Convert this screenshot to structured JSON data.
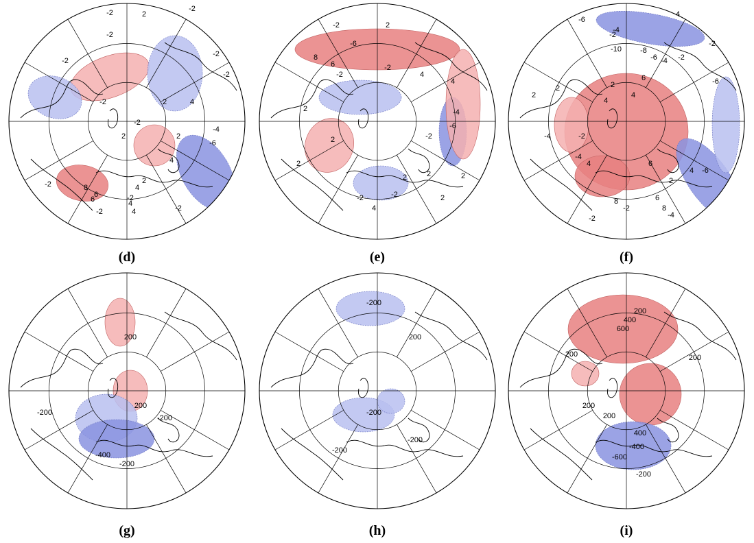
{
  "colors": {
    "positive_fill": "#f4b0b0",
    "positive_fill_strong": "#e88080",
    "negative_fill": "#b8bff0",
    "negative_fill_strong": "#8a93e0",
    "contour_bold": "#000000",
    "significance_contour": "#7ed321",
    "coastline": "#000000",
    "graticule": "#000000"
  },
  "panels": [
    {
      "label": "(d)",
      "contour_labels": [
        "2",
        "-2",
        "-2",
        "-2",
        "-2",
        "-2",
        "-2",
        "2",
        "2",
        "4",
        "4",
        "-2",
        "-4",
        "-6",
        "-2",
        "2",
        "4",
        "6",
        "8",
        "6",
        "4",
        "-2",
        "4",
        "-2",
        "-2",
        "-2",
        "2"
      ],
      "blobs": [
        {
          "sign": "pos",
          "strength": 1
        },
        {
          "sign": "pos",
          "strength": 2
        },
        {
          "sign": "neg",
          "strength": 1
        },
        {
          "sign": "neg",
          "strength": 2
        },
        {
          "sign": "pos",
          "strength": 1
        },
        {
          "sign": "neg",
          "strength": 1
        }
      ]
    },
    {
      "label": "(e)",
      "contour_labels": [
        "-2",
        "2",
        "-6",
        "8",
        "6",
        "-2",
        "-2",
        "2",
        "4",
        "-4",
        "4",
        "-6",
        "2",
        "-2",
        "2",
        "-2",
        "2",
        "2",
        "-2",
        "4",
        "2",
        "2"
      ],
      "blobs": [
        {
          "sign": "pos",
          "strength": 2
        },
        {
          "sign": "neg",
          "strength": 1
        },
        {
          "sign": "pos",
          "strength": 1
        },
        {
          "sign": "neg",
          "strength": 2
        },
        {
          "sign": "pos",
          "strength": 1
        },
        {
          "sign": "neg",
          "strength": 1
        }
      ]
    },
    {
      "label": "(f)",
      "contour_labels": [
        "4",
        "-6",
        "-2",
        "-4",
        "-10",
        "-8",
        "-6",
        "-4",
        "-2",
        "2",
        "4",
        "6",
        "2",
        "-4",
        "-2",
        "-6",
        "2",
        "-4",
        "4",
        "6",
        "8",
        "-2",
        "-6",
        "-4",
        "-2",
        "2",
        "4",
        "6",
        "8",
        "-2",
        "4"
      ],
      "blobs": [
        {
          "sign": "neg",
          "strength": 2
        },
        {
          "sign": "pos",
          "strength": 2
        },
        {
          "sign": "pos",
          "strength": 1
        },
        {
          "sign": "neg",
          "strength": 2
        },
        {
          "sign": "pos",
          "strength": 2
        },
        {
          "sign": "neg",
          "strength": 1
        }
      ]
    },
    {
      "label": "(g)",
      "contour_labels": [
        "200",
        "200",
        "-200",
        "-200",
        "-400",
        "-200"
      ],
      "blobs": [
        {
          "sign": "pos",
          "strength": 1
        },
        {
          "sign": "pos",
          "strength": 1
        },
        {
          "sign": "neg",
          "strength": 1
        },
        {
          "sign": "neg",
          "strength": 2
        }
      ]
    },
    {
      "label": "(h)",
      "contour_labels": [
        "-200",
        "200",
        "-200",
        "-200",
        "-200"
      ],
      "blobs": [
        {
          "sign": "neg",
          "strength": 1
        },
        {
          "sign": "neg",
          "strength": 1
        },
        {
          "sign": "neg",
          "strength": 1
        }
      ]
    },
    {
      "label": "(i)",
      "contour_labels": [
        "200",
        "400",
        "600",
        "200",
        "200",
        "200",
        "400",
        "-400",
        "-600",
        "-200",
        "200"
      ],
      "blobs": [
        {
          "sign": "pos",
          "strength": 2
        },
        {
          "sign": "pos",
          "strength": 2
        },
        {
          "sign": "neg",
          "strength": 2
        },
        {
          "sign": "pos",
          "strength": 1
        }
      ]
    }
  ]
}
